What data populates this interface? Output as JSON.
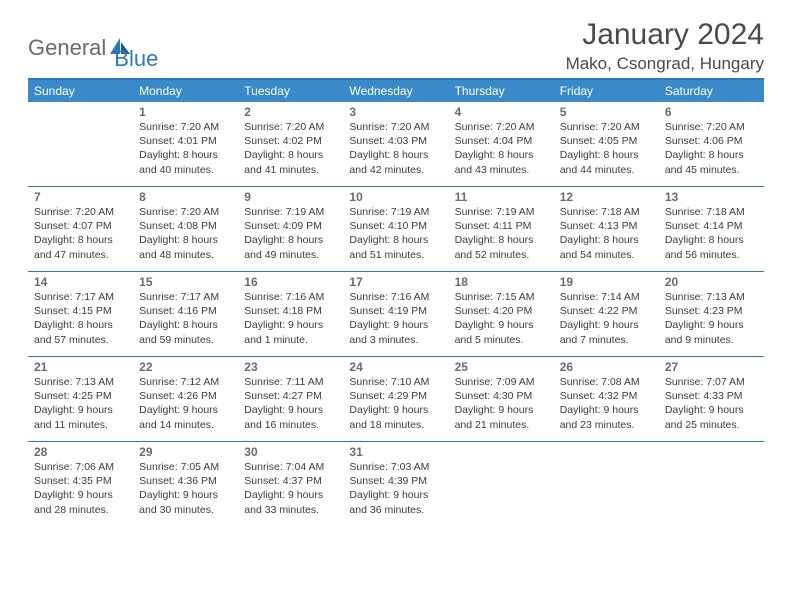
{
  "logo": {
    "text1": "General",
    "text2": "Blue"
  },
  "title": "January 2024",
  "location": "Mako, Csongrad, Hungary",
  "colors": {
    "header_bg": "#3a8ac9",
    "header_border": "#2f78bd",
    "logo_gray": "#6b6b6b",
    "logo_blue": "#2f78bd",
    "text": "#3d3d3d",
    "daynum": "#6b6b6b"
  },
  "day_names": [
    "Sunday",
    "Monday",
    "Tuesday",
    "Wednesday",
    "Thursday",
    "Friday",
    "Saturday"
  ],
  "weeks": [
    [
      null,
      {
        "n": "1",
        "sr": "Sunrise: 7:20 AM",
        "ss": "Sunset: 4:01 PM",
        "d1": "Daylight: 8 hours",
        "d2": "and 40 minutes."
      },
      {
        "n": "2",
        "sr": "Sunrise: 7:20 AM",
        "ss": "Sunset: 4:02 PM",
        "d1": "Daylight: 8 hours",
        "d2": "and 41 minutes."
      },
      {
        "n": "3",
        "sr": "Sunrise: 7:20 AM",
        "ss": "Sunset: 4:03 PM",
        "d1": "Daylight: 8 hours",
        "d2": "and 42 minutes."
      },
      {
        "n": "4",
        "sr": "Sunrise: 7:20 AM",
        "ss": "Sunset: 4:04 PM",
        "d1": "Daylight: 8 hours",
        "d2": "and 43 minutes."
      },
      {
        "n": "5",
        "sr": "Sunrise: 7:20 AM",
        "ss": "Sunset: 4:05 PM",
        "d1": "Daylight: 8 hours",
        "d2": "and 44 minutes."
      },
      {
        "n": "6",
        "sr": "Sunrise: 7:20 AM",
        "ss": "Sunset: 4:06 PM",
        "d1": "Daylight: 8 hours",
        "d2": "and 45 minutes."
      }
    ],
    [
      {
        "n": "7",
        "sr": "Sunrise: 7:20 AM",
        "ss": "Sunset: 4:07 PM",
        "d1": "Daylight: 8 hours",
        "d2": "and 47 minutes."
      },
      {
        "n": "8",
        "sr": "Sunrise: 7:20 AM",
        "ss": "Sunset: 4:08 PM",
        "d1": "Daylight: 8 hours",
        "d2": "and 48 minutes."
      },
      {
        "n": "9",
        "sr": "Sunrise: 7:19 AM",
        "ss": "Sunset: 4:09 PM",
        "d1": "Daylight: 8 hours",
        "d2": "and 49 minutes."
      },
      {
        "n": "10",
        "sr": "Sunrise: 7:19 AM",
        "ss": "Sunset: 4:10 PM",
        "d1": "Daylight: 8 hours",
        "d2": "and 51 minutes."
      },
      {
        "n": "11",
        "sr": "Sunrise: 7:19 AM",
        "ss": "Sunset: 4:11 PM",
        "d1": "Daylight: 8 hours",
        "d2": "and 52 minutes."
      },
      {
        "n": "12",
        "sr": "Sunrise: 7:18 AM",
        "ss": "Sunset: 4:13 PM",
        "d1": "Daylight: 8 hours",
        "d2": "and 54 minutes."
      },
      {
        "n": "13",
        "sr": "Sunrise: 7:18 AM",
        "ss": "Sunset: 4:14 PM",
        "d1": "Daylight: 8 hours",
        "d2": "and 56 minutes."
      }
    ],
    [
      {
        "n": "14",
        "sr": "Sunrise: 7:17 AM",
        "ss": "Sunset: 4:15 PM",
        "d1": "Daylight: 8 hours",
        "d2": "and 57 minutes."
      },
      {
        "n": "15",
        "sr": "Sunrise: 7:17 AM",
        "ss": "Sunset: 4:16 PM",
        "d1": "Daylight: 8 hours",
        "d2": "and 59 minutes."
      },
      {
        "n": "16",
        "sr": "Sunrise: 7:16 AM",
        "ss": "Sunset: 4:18 PM",
        "d1": "Daylight: 9 hours",
        "d2": "and 1 minute."
      },
      {
        "n": "17",
        "sr": "Sunrise: 7:16 AM",
        "ss": "Sunset: 4:19 PM",
        "d1": "Daylight: 9 hours",
        "d2": "and 3 minutes."
      },
      {
        "n": "18",
        "sr": "Sunrise: 7:15 AM",
        "ss": "Sunset: 4:20 PM",
        "d1": "Daylight: 9 hours",
        "d2": "and 5 minutes."
      },
      {
        "n": "19",
        "sr": "Sunrise: 7:14 AM",
        "ss": "Sunset: 4:22 PM",
        "d1": "Daylight: 9 hours",
        "d2": "and 7 minutes."
      },
      {
        "n": "20",
        "sr": "Sunrise: 7:13 AM",
        "ss": "Sunset: 4:23 PM",
        "d1": "Daylight: 9 hours",
        "d2": "and 9 minutes."
      }
    ],
    [
      {
        "n": "21",
        "sr": "Sunrise: 7:13 AM",
        "ss": "Sunset: 4:25 PM",
        "d1": "Daylight: 9 hours",
        "d2": "and 11 minutes."
      },
      {
        "n": "22",
        "sr": "Sunrise: 7:12 AM",
        "ss": "Sunset: 4:26 PM",
        "d1": "Daylight: 9 hours",
        "d2": "and 14 minutes."
      },
      {
        "n": "23",
        "sr": "Sunrise: 7:11 AM",
        "ss": "Sunset: 4:27 PM",
        "d1": "Daylight: 9 hours",
        "d2": "and 16 minutes."
      },
      {
        "n": "24",
        "sr": "Sunrise: 7:10 AM",
        "ss": "Sunset: 4:29 PM",
        "d1": "Daylight: 9 hours",
        "d2": "and 18 minutes."
      },
      {
        "n": "25",
        "sr": "Sunrise: 7:09 AM",
        "ss": "Sunset: 4:30 PM",
        "d1": "Daylight: 9 hours",
        "d2": "and 21 minutes."
      },
      {
        "n": "26",
        "sr": "Sunrise: 7:08 AM",
        "ss": "Sunset: 4:32 PM",
        "d1": "Daylight: 9 hours",
        "d2": "and 23 minutes."
      },
      {
        "n": "27",
        "sr": "Sunrise: 7:07 AM",
        "ss": "Sunset: 4:33 PM",
        "d1": "Daylight: 9 hours",
        "d2": "and 25 minutes."
      }
    ],
    [
      {
        "n": "28",
        "sr": "Sunrise: 7:06 AM",
        "ss": "Sunset: 4:35 PM",
        "d1": "Daylight: 9 hours",
        "d2": "and 28 minutes."
      },
      {
        "n": "29",
        "sr": "Sunrise: 7:05 AM",
        "ss": "Sunset: 4:36 PM",
        "d1": "Daylight: 9 hours",
        "d2": "and 30 minutes."
      },
      {
        "n": "30",
        "sr": "Sunrise: 7:04 AM",
        "ss": "Sunset: 4:37 PM",
        "d1": "Daylight: 9 hours",
        "d2": "and 33 minutes."
      },
      {
        "n": "31",
        "sr": "Sunrise: 7:03 AM",
        "ss": "Sunset: 4:39 PM",
        "d1": "Daylight: 9 hours",
        "d2": "and 36 minutes."
      },
      null,
      null,
      null
    ]
  ]
}
